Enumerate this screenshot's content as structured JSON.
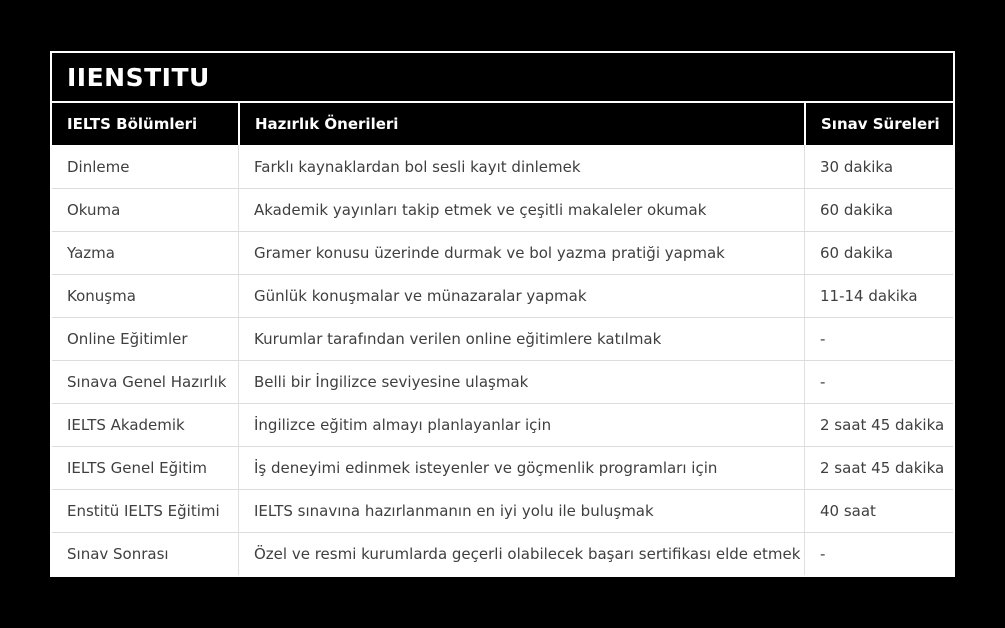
{
  "chart_data": {
    "type": "table",
    "title": "IIENSTITU",
    "columns": [
      "IELTS Bölümleri",
      "Hazırlık Önerileri",
      "Sınav Süreleri"
    ],
    "rows": [
      [
        "Dinleme",
        "Farklı kaynaklardan bol sesli kayıt dinlemek",
        "30 dakika"
      ],
      [
        "Okuma",
        "Akademik yayınları takip etmek ve çeşitli makaleler okumak",
        "60 dakika"
      ],
      [
        "Yazma",
        "Gramer konusu üzerinde durmak ve bol yazma pratiği yapmak",
        "60 dakika"
      ],
      [
        "Konuşma",
        "Günlük konuşmalar ve münazaralar yapmak",
        "11-14 dakika"
      ],
      [
        "Online Eğitimler",
        "Kurumlar tarafından verilen online eğitimlere katılmak",
        "-"
      ],
      [
        "Sınava Genel Hazırlık",
        "Belli bir İngilizce seviyesine ulaşmak",
        "-"
      ],
      [
        "IELTS Akademik",
        "İngilizce eğitim almayı planlayanlar için",
        "2 saat 45 dakika"
      ],
      [
        "IELTS Genel Eğitim",
        "İş deneyimi edinmek isteyenler ve göçmenlik programları için",
        "2 saat 45 dakika"
      ],
      [
        "Enstitü IELTS Eğitimi",
        "IELTS sınavına hazırlanmanın en iyi yolu ile buluşmak",
        "40 saat"
      ],
      [
        "Sınav Sonrası",
        "Özel ve resmi kurumlarda geçerli olabilecek başarı sertifikası elde etmek",
        "-"
      ]
    ],
    "layout": {
      "legend": "none",
      "grid": "row-dividers"
    }
  },
  "colors": {
    "page_background": "#000000",
    "card_border": "#ffffff",
    "header_background": "#000000",
    "header_text": "#ffffff",
    "row_background": "#ffffff",
    "row_text": "#3f3f3f",
    "row_divider": "#dcdcdc"
  }
}
